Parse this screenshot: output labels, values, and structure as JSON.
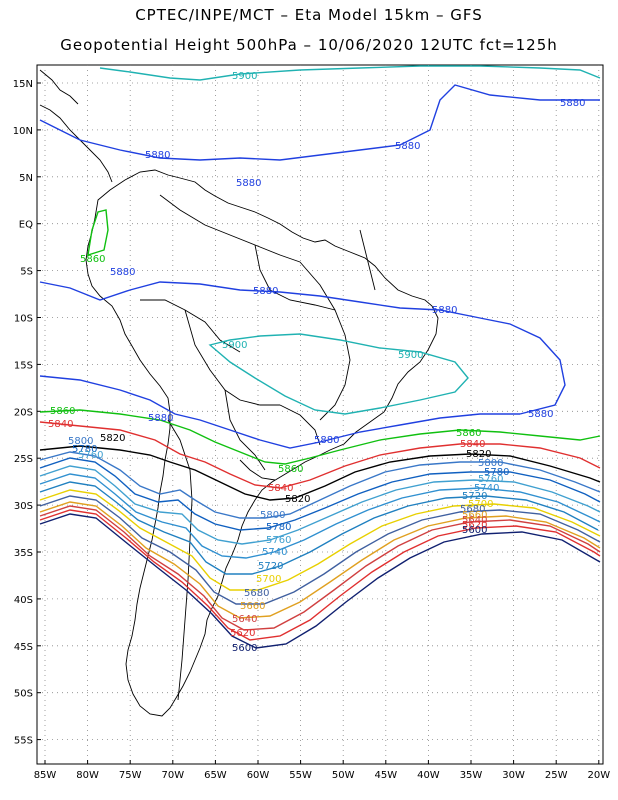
{
  "header": {
    "line1": "CPTEC/INPE/MCT –  Eta Model 15km – GFS",
    "line2": "Geopotential Height 500hPa – 10/06/2020 12UTC fct=125h"
  },
  "axes": {
    "lat_labels": [
      "15N",
      "10N",
      "5N",
      "EQ",
      "5S",
      "10S",
      "15S",
      "20S",
      "25S",
      "30S",
      "35S",
      "40S",
      "45S",
      "50S",
      "55S"
    ],
    "lon_labels": [
      "85W",
      "80W",
      "75W",
      "70W",
      "65W",
      "60W",
      "55W",
      "50W",
      "45W",
      "40W",
      "35W",
      "30W",
      "25W",
      "20W"
    ]
  },
  "colors": {
    "c5900": "#20b2b2",
    "c5880": "#2040e0",
    "c5860": "#10c010",
    "c5840": "#e03030",
    "c5820": "#000000",
    "c5800": "#3a78c8",
    "c5780": "#1060c0",
    "c5760": "#40a0d0",
    "c5740": "#3090d0",
    "c5720": "#2080c0",
    "c5700": "#e8d000",
    "c5680": "#4060a0",
    "c5660": "#e0a020",
    "c5640": "#d04040",
    "c5620": "#e03030",
    "c5600": "#102070"
  },
  "contour_labels": {
    "c5900_a": "5900",
    "c5900_b": "5900",
    "c5900_c": "5900",
    "c5880_a": "5880",
    "c5880_b": "5880",
    "c5880_c": "5880",
    "c5880_d": "5880",
    "c5880_e": "5880",
    "c5880_f": "5880",
    "c5880_g": "5880",
    "c5880_h": "5880",
    "c5880_i": "5880",
    "c5880_j": "5880",
    "c5860_a": "5860",
    "c5860_b": "5860",
    "c5860_c": "5860",
    "c5860_d": "5860",
    "c5840_a": "5840",
    "c5840_b": "5840",
    "c5840_c": "5840",
    "c5820_a": "5820",
    "c5820_b": "5820",
    "c5820_c": "5820",
    "c5800_a": "5800",
    "c5800_b": "5800",
    "c5800_c": "5800",
    "c5780_a": "5780",
    "c5780_b": "5780",
    "c5780_c": "5780",
    "c5760_a": "5760",
    "c5760_b": "5760",
    "c5760_c": "5760",
    "c5740_a": "5740",
    "c5740_b": "5740",
    "c5720_a": "5720",
    "c5720_b": "5720",
    "c5700_a": "5700",
    "c5700_b": "5700",
    "c5680_a": "5680",
    "c5680_b": "5680",
    "c5660_a": "5660",
    "c5660_b": "5660",
    "c5640_a": "5640",
    "c5640_b": "5640",
    "c5620_a": "5620",
    "c5620_b": "5620",
    "c5600_a": "5600",
    "c5600_b": "5600"
  }
}
